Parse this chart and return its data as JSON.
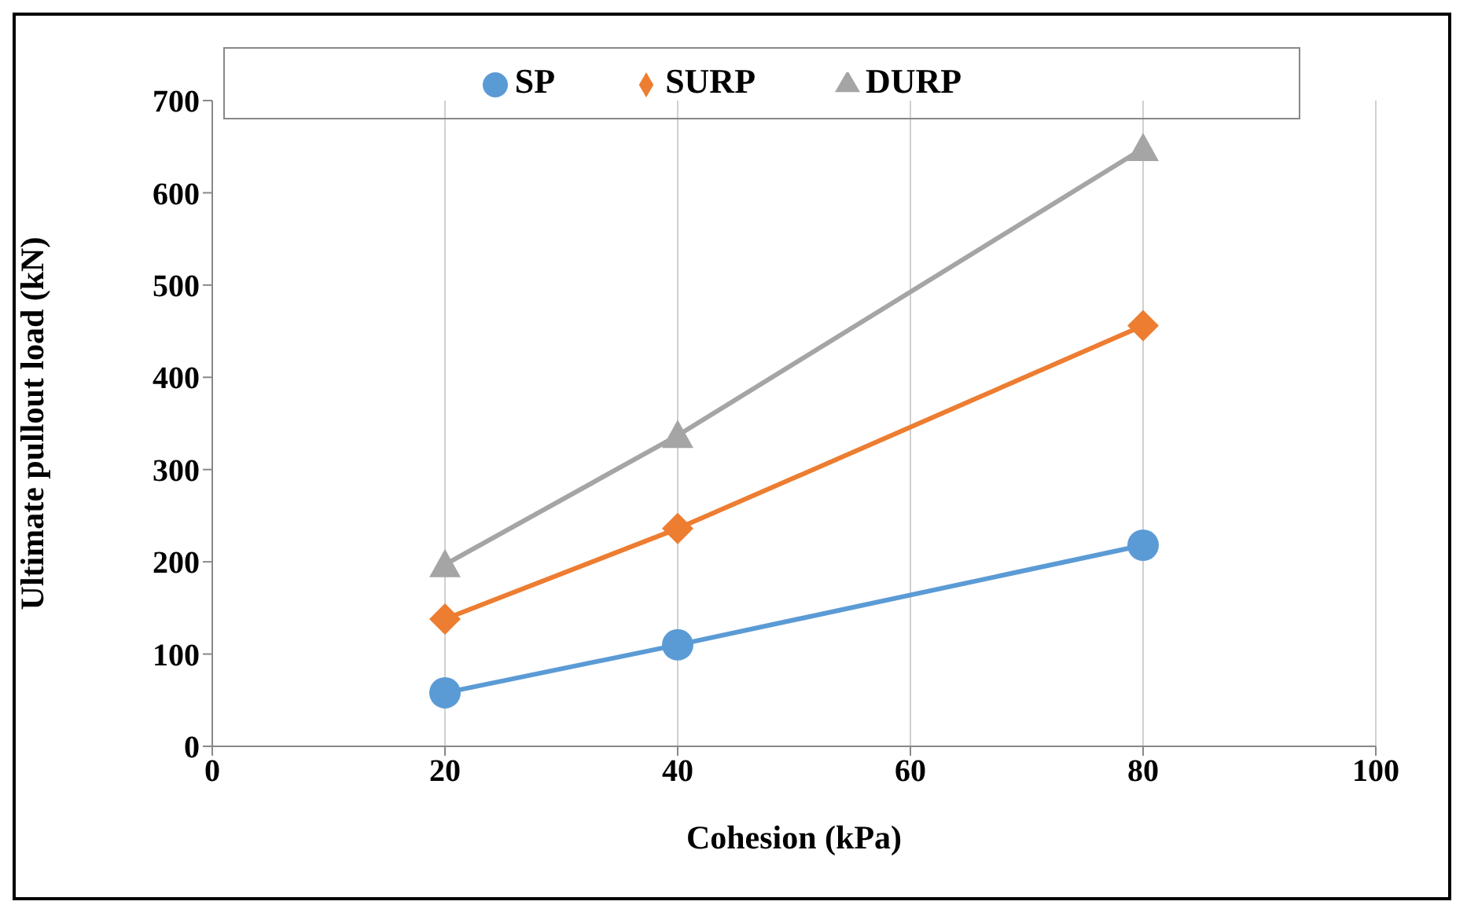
{
  "chart_data": {
    "type": "line",
    "xlabel": "Cohesion (kPa)",
    "ylabel": "Ultimate pullout load (kN)",
    "x": [
      20,
      40,
      80
    ],
    "series": [
      {
        "name": "SP",
        "color": "#5b9bd5",
        "values": [
          58,
          110,
          218
        ],
        "marker": "circle"
      },
      {
        "name": "SURP",
        "color": "#ed7d31",
        "values": [
          138,
          236,
          456
        ],
        "marker": "diamond"
      },
      {
        "name": "DURP",
        "color": "#a5a5a5",
        "values": [
          197,
          337,
          648
        ],
        "marker": "triangle"
      }
    ],
    "xlim": [
      0,
      100
    ],
    "xticks": [
      0,
      20,
      40,
      60,
      80,
      100
    ],
    "ylim": [
      0,
      700
    ],
    "yticks": [
      0,
      100,
      200,
      300,
      400,
      500,
      600,
      700
    ],
    "grid": "x",
    "legend": "top",
    "line_style": "solid"
  }
}
